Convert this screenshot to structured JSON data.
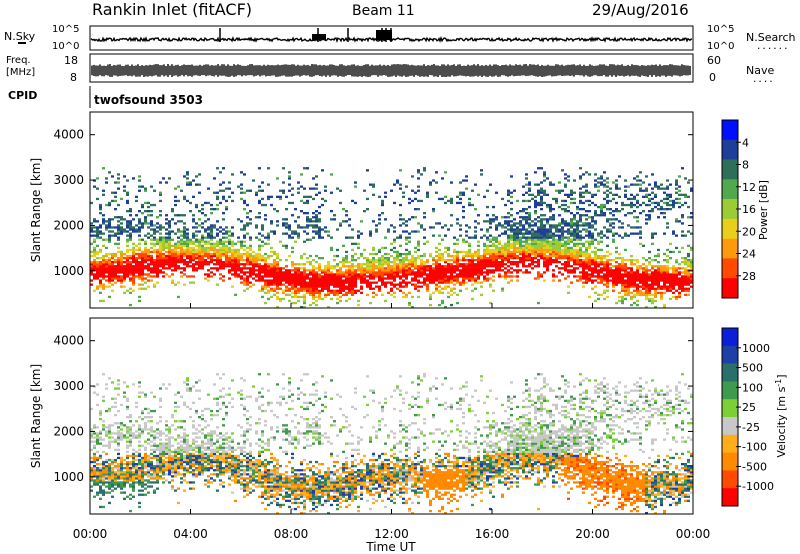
{
  "header": {
    "station": "Rankin Inlet (fitACF)",
    "beam": "Beam 11",
    "date": "29/Aug/2016"
  },
  "nsky_panel": {
    "left_label": "N.Sky",
    "right_label": "N.Search",
    "right_marker": "......",
    "tick_high": "10^5",
    "tick_low": "10^0"
  },
  "freq_panel": {
    "left_label_1": "Freq.",
    "left_label_2": "[MHz]",
    "tick_high": "18",
    "tick_low": "8",
    "right_tick_high": "60",
    "right_tick_low": "0",
    "right_label": "Nave",
    "right_marker": "...."
  },
  "cpid_panel": {
    "label": "CPID",
    "program": "twofsound 3503"
  },
  "chart_data": [
    {
      "type": "heatmap",
      "title": "",
      "xlabel": "",
      "ylabel": "Slant Range [km]",
      "xlim": [
        "00:00",
        "00:00"
      ],
      "ylim": [
        180,
        4500
      ],
      "yticks": [
        1000,
        2000,
        3000,
        4000
      ],
      "colorbar": {
        "label": "Power [dB]",
        "ticks": [
          "4",
          "8",
          "12",
          "16",
          "20",
          "24",
          "28"
        ],
        "colors": [
          "#0010ff",
          "#1e3f99",
          "#2e6f5a",
          "#52a84c",
          "#9ccc35",
          "#e8cf1b",
          "#ff9a0f",
          "#ff4a00",
          "#ff0000"
        ]
      }
    },
    {
      "type": "heatmap",
      "title": "",
      "xlabel": "Time UT",
      "ylabel": "Slant Range [km]",
      "xlim": [
        "00:00",
        "00:00"
      ],
      "ylim": [
        180,
        4500
      ],
      "xticks": [
        "00:00",
        "04:00",
        "08:00",
        "12:00",
        "16:00",
        "20:00",
        "00:00"
      ],
      "yticks": [
        1000,
        2000,
        3000,
        4000
      ],
      "colorbar": {
        "label": "Velocity [m s",
        "label_sup": "-1",
        "label_end": "]",
        "ticks": [
          "1000",
          "500",
          "100",
          "25",
          "-25",
          "-100",
          "-500",
          "-1000"
        ],
        "colors": [
          "#0a1fd6",
          "#1e3fa8",
          "#2a6f6a",
          "#3f9a4d",
          "#7ccf35",
          "#c8c8c8",
          "#ffae1a",
          "#ff8a00",
          "#ff4a00",
          "#ff0000"
        ]
      }
    }
  ]
}
